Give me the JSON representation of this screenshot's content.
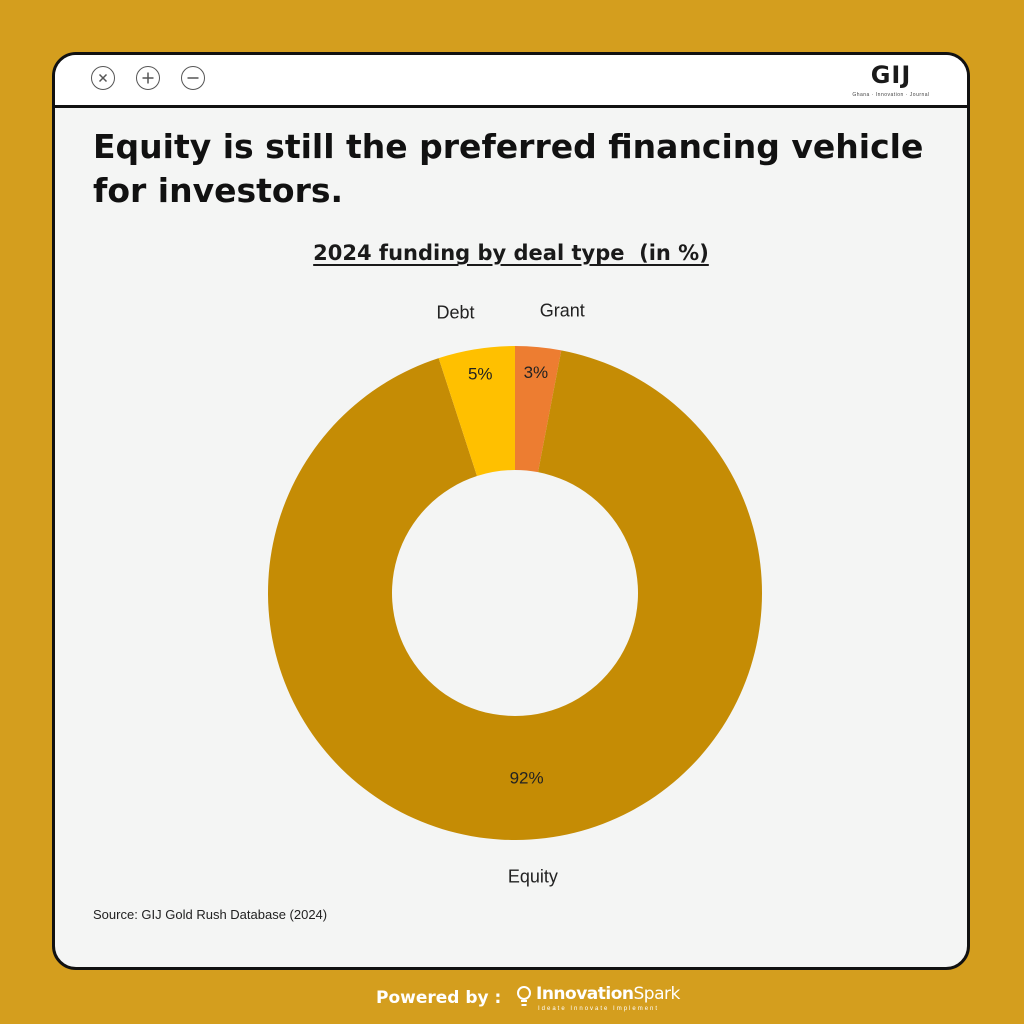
{
  "window": {
    "buttons": [
      {
        "name": "close",
        "icon": "close-icon"
      },
      {
        "name": "add",
        "icon": "plus-icon"
      },
      {
        "name": "minimize",
        "icon": "minus-icon"
      }
    ],
    "logo_text": "GIJ",
    "logo_tagline": "Ghana · Innovation · Journal"
  },
  "headline": "Equity is still the preferred financing vehicle for investors.",
  "chart_data": {
    "type": "pie",
    "variant": "donut",
    "title": "2024 funding by deal type  (in %)",
    "labels": [
      "Grant",
      "Equity",
      "Debt"
    ],
    "values": [
      3,
      92,
      5
    ],
    "value_labels": [
      "3%",
      "92%",
      "5%"
    ],
    "colors": [
      "#ed7d31",
      "#c58c05",
      "#ffc000"
    ],
    "legend": "none"
  },
  "source": "Source: GIJ Gold Rush Database (2024)",
  "footer": {
    "powered_by": "Powered by :",
    "brand_prefix": "Innovation",
    "brand_suffix": "Spark",
    "brand_tagline": "Ideate  Innovate  Implement"
  },
  "colors": {
    "background": "#d49e1e",
    "panel": "#f4f5f4",
    "border": "#111111"
  }
}
